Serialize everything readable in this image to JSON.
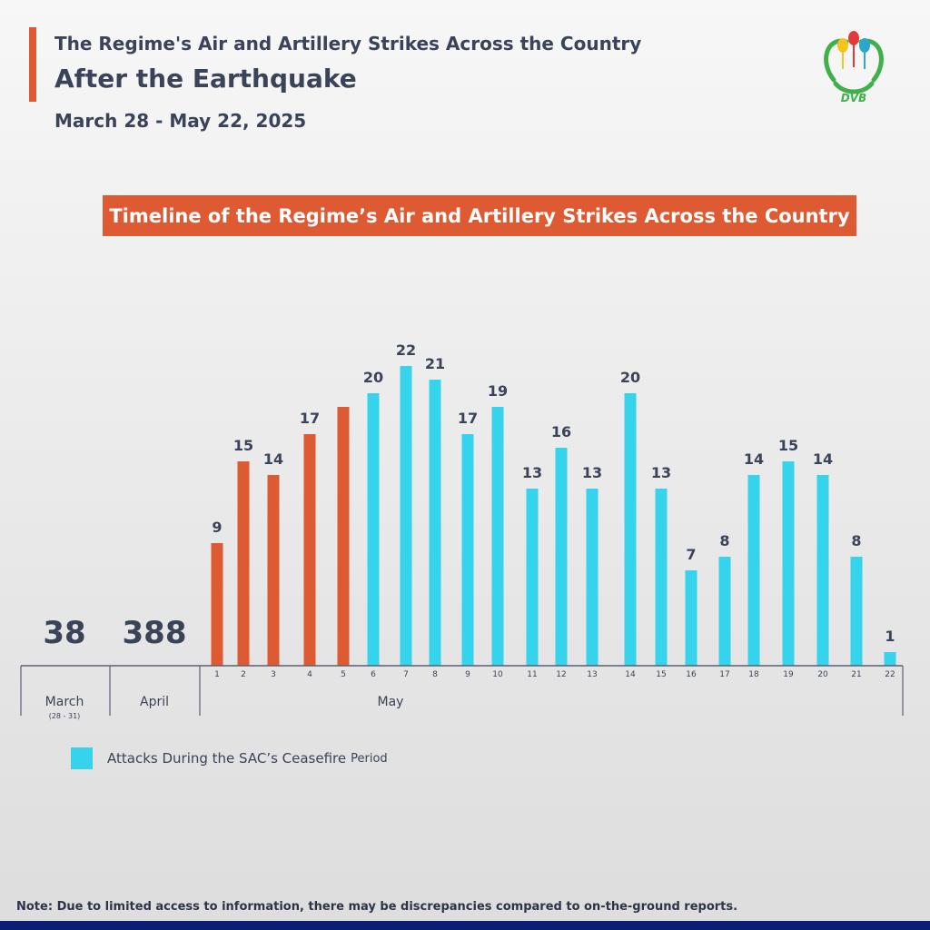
{
  "header": {
    "line1": "The Regime's Air and Artillery Strikes Across the Country",
    "line2": "After the Earthquake",
    "date_range": "March 28 - May 22, 2025",
    "accent_color": "#de5a32"
  },
  "logo": {
    "text": "DVB",
    "icon": "dvb-logo-icon"
  },
  "chart_title": "Timeline of the Regime’s Air and Artillery Strikes Across the Country",
  "legend": {
    "label_main": "Attacks During the SAC’s Ceasefire",
    "label_tail": "Period",
    "color": "#36d3ec"
  },
  "note": "Note: Due to limited access to information, there may be discrepancies compared to on-the-ground reports.",
  "chart_data": {
    "type": "bar",
    "title": "Timeline of the Regime’s Air and Artillery Strikes Across the Country",
    "xlabel": "",
    "ylabel": "",
    "ylim": [
      0,
      22
    ],
    "grid": false,
    "legend_placement": "bottom-left",
    "colors": {
      "regular": "#de5a32",
      "ceasefire": "#36d3ec"
    },
    "groups": [
      {
        "label": "March",
        "sublabel": "(28 - 31)",
        "total": 38
      },
      {
        "label": "April",
        "sublabel": "",
        "total": 388
      },
      {
        "label": "May",
        "sublabel": "",
        "total": null
      }
    ],
    "categories": [
      "1",
      "2",
      "3",
      "4",
      "5",
      "6",
      "7",
      "8",
      "9",
      "10",
      "11",
      "12",
      "13",
      "14",
      "15",
      "16",
      "17",
      "18",
      "19",
      "20",
      "21",
      "22"
    ],
    "values": [
      9,
      15,
      14,
      17,
      19,
      20,
      22,
      21,
      17,
      19,
      13,
      16,
      13,
      20,
      13,
      7,
      8,
      14,
      15,
      14,
      8,
      1
    ],
    "value_labels": [
      "9",
      "15",
      "14",
      "17",
      "",
      "20",
      "22",
      "21",
      "17",
      "19",
      "13",
      "16",
      "13",
      "20",
      "13",
      "7",
      "8",
      "14",
      "15",
      "14",
      "8",
      "1"
    ],
    "ceasefire": [
      false,
      false,
      false,
      false,
      false,
      true,
      true,
      true,
      true,
      true,
      true,
      true,
      true,
      true,
      true,
      true,
      true,
      true,
      true,
      true,
      true,
      true
    ]
  }
}
